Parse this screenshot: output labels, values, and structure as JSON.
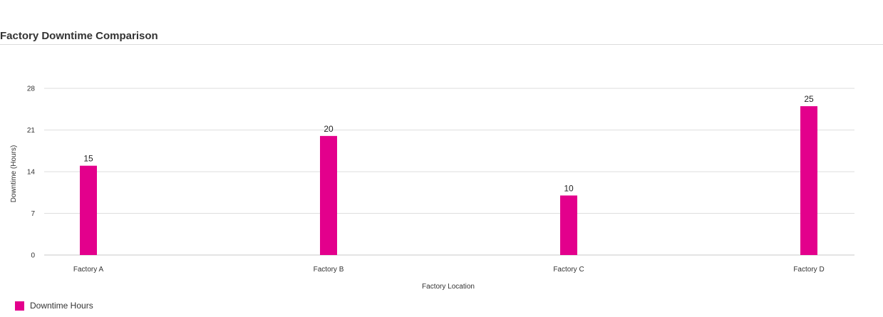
{
  "chart_data": {
    "type": "bar",
    "title": "Factory Downtime Comparison",
    "xlabel": "Factory Location",
    "ylabel": "Downtime (Hours)",
    "categories": [
      "Factory A",
      "Factory B",
      "Factory C",
      "Factory D"
    ],
    "series": [
      {
        "name": "Downtime Hours",
        "values": [
          15,
          20,
          10,
          25
        ],
        "color": "#e3008c"
      }
    ],
    "yticks": [
      0,
      7,
      14,
      21,
      28
    ],
    "ylim": [
      0,
      28
    ],
    "grid": true,
    "legend_position": "bottom-left"
  }
}
